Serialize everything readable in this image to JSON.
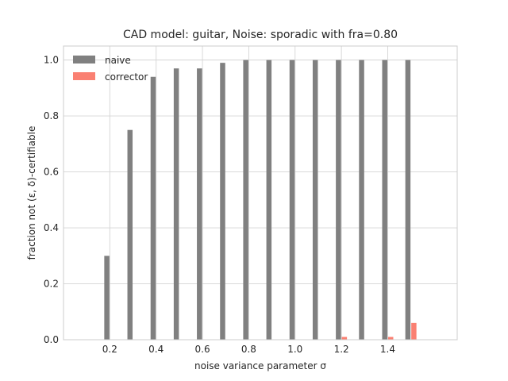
{
  "chart_data": {
    "type": "bar",
    "title": "CAD model: guitar, Noise: sporadic with fra=0.80",
    "xlabel": "noise variance parameter σ",
    "ylabel": "fraction not (ε, δ)-certifiable",
    "x": [
      0.2,
      0.3,
      0.4,
      0.5,
      0.6,
      0.7,
      0.8,
      0.9,
      1.0,
      1.1,
      1.2,
      1.3,
      1.4,
      1.5
    ],
    "xlim": [
      0.0,
      1.7
    ],
    "ylim": [
      0.0,
      1.05
    ],
    "xticks": [
      0.2,
      0.4,
      0.6,
      0.8,
      1.0,
      1.2,
      1.4
    ],
    "xtick_labels": [
      "0.2",
      "0.4",
      "0.6",
      "0.8",
      "1.0",
      "1.2",
      "1.4"
    ],
    "yticks": [
      0.0,
      0.2,
      0.4,
      0.6,
      0.8,
      1.0
    ],
    "ytick_labels": [
      "0.0",
      "0.2",
      "0.4",
      "0.6",
      "0.8",
      "1.0"
    ],
    "grid": true,
    "legend_position": "top-left",
    "series": [
      {
        "name": "naive",
        "color": "#808080",
        "values": [
          0.3,
          0.75,
          0.94,
          0.97,
          0.97,
          0.99,
          1.0,
          1.0,
          1.0,
          1.0,
          1.0,
          1.0,
          1.0,
          1.0
        ]
      },
      {
        "name": "corrector",
        "color": "#fa8072",
        "values": [
          0.0,
          0.0,
          0.0,
          0.0,
          0.0,
          0.0,
          0.0,
          0.0,
          0.0,
          0.0,
          0.01,
          0.0,
          0.01,
          0.06
        ]
      }
    ]
  }
}
